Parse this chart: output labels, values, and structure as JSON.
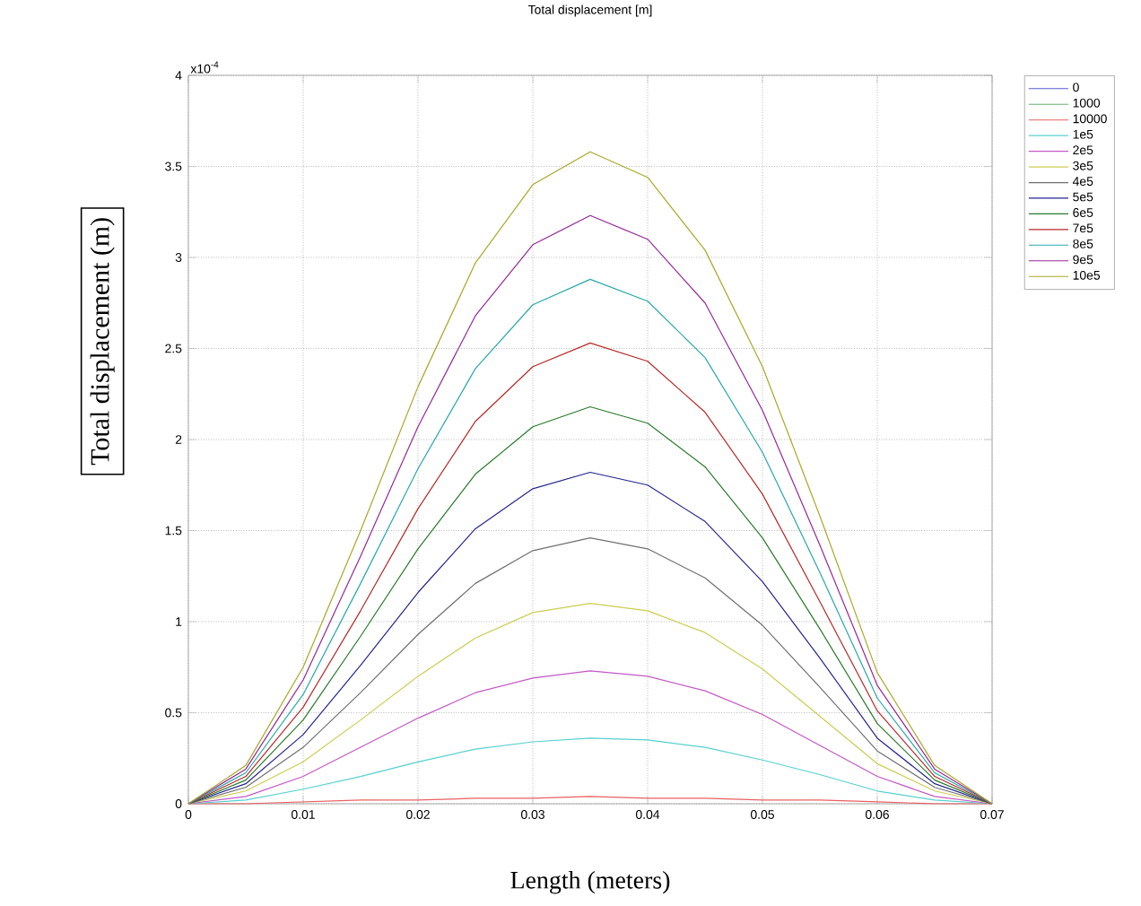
{
  "chart_data": {
    "type": "line",
    "title": "Total displacement [m]",
    "xlabel": "Length (meters)",
    "ylabel": "Total displacement (m)",
    "annotations": [
      "x10$^{-4}$"
    ],
    "xlim": [
      0,
      0.07
    ],
    "ylim": [
      0,
      4
    ],
    "xticks": [
      0,
      0.01,
      0.02,
      0.03,
      0.04,
      0.05,
      0.06,
      0.07
    ],
    "yticks": [
      0,
      0.5,
      1,
      1.5,
      2,
      2.5,
      3,
      3.5,
      4
    ],
    "grid": true,
    "legend": "right",
    "marker": "none",
    "line_style": "solid",
    "x": [
      0,
      0.005,
      0.01,
      0.015,
      0.02,
      0.025,
      0.03,
      0.035,
      0.04,
      0.045,
      0.05,
      0.055,
      0.06,
      0.065,
      0.07
    ],
    "series": [
      {
        "name": "0",
        "color": "#5a5ad0",
        "values": [
          null,
          null,
          null,
          null,
          null,
          null,
          null,
          null,
          null,
          null,
          null,
          null,
          null,
          null,
          null
        ]
      },
      {
        "name": "1000",
        "color": "#6cb06c",
        "values": [
          null,
          null,
          null,
          null,
          null,
          null,
          null,
          null,
          null,
          null,
          null,
          null,
          null,
          null,
          null
        ]
      },
      {
        "name": "10000",
        "color": "#e86060",
        "values": [
          0,
          0,
          0.01,
          0.02,
          0.02,
          0.03,
          0.03,
          0.04,
          0.03,
          0.03,
          0.02,
          0.02,
          0.01,
          0,
          0
        ]
      },
      {
        "name": "1e5",
        "color": "#58d0d0",
        "values": [
          0,
          0.02,
          0.08,
          0.15,
          0.23,
          0.3,
          0.34,
          0.36,
          0.35,
          0.31,
          0.24,
          0.16,
          0.07,
          0.02,
          0
        ]
      },
      {
        "name": "2e5",
        "color": "#c458c4",
        "values": [
          0,
          0.04,
          0.15,
          0.31,
          0.47,
          0.61,
          0.69,
          0.73,
          0.7,
          0.62,
          0.49,
          0.32,
          0.15,
          0.04,
          0
        ]
      },
      {
        "name": "3e5",
        "color": "#cccc50",
        "values": [
          0,
          0.07,
          0.23,
          0.46,
          0.7,
          0.91,
          1.05,
          1.1,
          1.06,
          0.94,
          0.74,
          0.48,
          0.22,
          0.07,
          0
        ]
      },
      {
        "name": "4e5",
        "color": "#707070",
        "values": [
          0,
          0.09,
          0.31,
          0.61,
          0.93,
          1.21,
          1.39,
          1.46,
          1.4,
          1.24,
          0.98,
          0.64,
          0.29,
          0.09,
          0
        ]
      },
      {
        "name": "5e5",
        "color": "#252590",
        "values": [
          0,
          0.11,
          0.38,
          0.76,
          1.16,
          1.51,
          1.73,
          1.82,
          1.75,
          1.55,
          1.22,
          0.8,
          0.36,
          0.11,
          0
        ]
      },
      {
        "name": "6e5",
        "color": "#2a7a2a",
        "values": [
          0,
          0.13,
          0.46,
          0.92,
          1.4,
          1.81,
          2.07,
          2.18,
          2.09,
          1.85,
          1.46,
          0.96,
          0.44,
          0.13,
          0
        ]
      },
      {
        "name": "7e5",
        "color": "#b82828",
        "values": [
          0,
          0.15,
          0.53,
          1.06,
          1.62,
          2.1,
          2.4,
          2.53,
          2.43,
          2.15,
          1.7,
          1.11,
          0.51,
          0.15,
          0
        ]
      },
      {
        "name": "8e5",
        "color": "#28a8a8",
        "values": [
          0,
          0.17,
          0.6,
          1.21,
          1.84,
          2.39,
          2.74,
          2.88,
          2.76,
          2.45,
          1.93,
          1.27,
          0.58,
          0.17,
          0
        ]
      },
      {
        "name": "9e5",
        "color": "#962896",
        "values": [
          0,
          0.19,
          0.68,
          1.36,
          2.07,
          2.68,
          3.07,
          3.23,
          3.1,
          2.75,
          2.16,
          1.42,
          0.65,
          0.19,
          0
        ]
      },
      {
        "name": "10e5",
        "color": "#a8a828",
        "values": [
          0,
          0.21,
          0.75,
          1.5,
          2.29,
          2.97,
          3.4,
          3.58,
          3.44,
          3.04,
          2.4,
          1.58,
          0.72,
          0.21,
          0
        ]
      }
    ]
  }
}
